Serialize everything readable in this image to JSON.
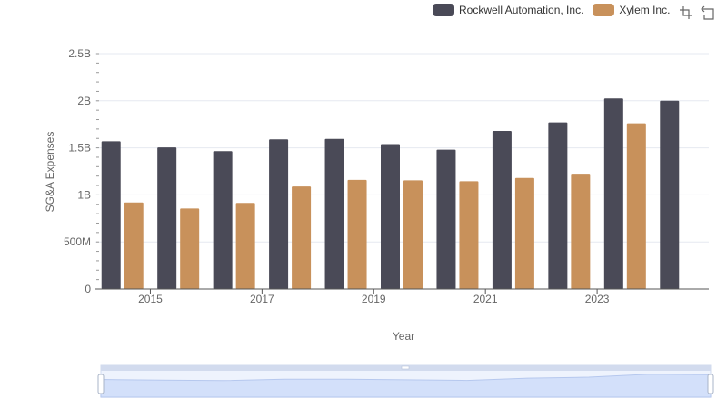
{
  "legend": {
    "items": [
      {
        "label": "Rockwell Automation, Inc.",
        "color": "#4a4a57"
      },
      {
        "label": "Xylem Inc.",
        "color": "#c8915b"
      }
    ]
  },
  "toolbox": [
    "zoom-icon",
    "restore-icon"
  ],
  "chart_data": {
    "type": "bar",
    "title": "",
    "xlabel": "Year",
    "ylabel": "SG&A Expenses",
    "categories": [
      "2014",
      "2015",
      "2016",
      "2017",
      "2018",
      "2019",
      "2020",
      "2021",
      "2022",
      "2023",
      "2024"
    ],
    "x_tick_labels": [
      "2015",
      "2017",
      "2019",
      "2021",
      "2023"
    ],
    "y_tick_labels": [
      "0",
      "500M",
      "1B",
      "1.5B",
      "2B",
      "2.5B"
    ],
    "ylim": [
      0,
      2500000000
    ],
    "grid": true,
    "legend_position": "top-right",
    "series": [
      {
        "name": "Rockwell Automation, Inc.",
        "color": "#4a4a57",
        "values": [
          1570000000,
          1505000000,
          1465000000,
          1590000000,
          1595000000,
          1540000000,
          1480000000,
          1680000000,
          1770000000,
          2025000000,
          2000000000
        ]
      },
      {
        "name": "Xylem Inc.",
        "color": "#c8915b",
        "values": [
          920000000,
          855000000,
          915000000,
          1090000000,
          1160000000,
          1155000000,
          1145000000,
          1180000000,
          1225000000,
          1760000000,
          null
        ]
      }
    ]
  },
  "datazoom": {
    "start_percent": 0,
    "end_percent": 100
  }
}
